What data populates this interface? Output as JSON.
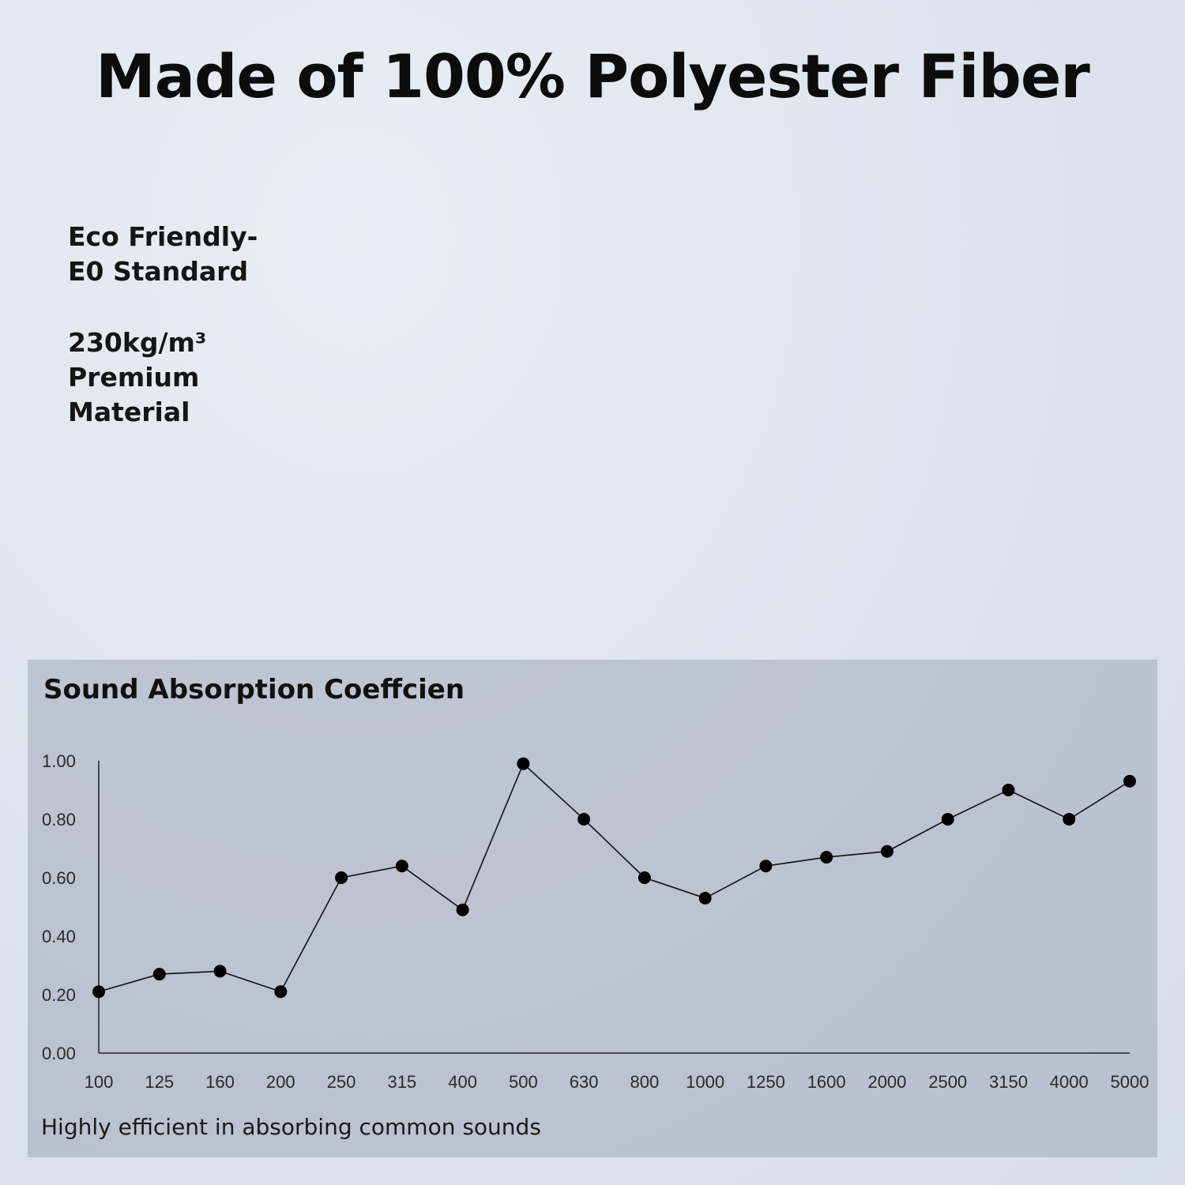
{
  "headline": "Made of 100% Polyester Fiber",
  "features": [
    {
      "lines": [
        "Eco Friendly-",
        "E0 Standard"
      ]
    },
    {
      "lines": [
        "230kg/m³",
        "Premium",
        "Material"
      ]
    }
  ],
  "chart_data": {
    "type": "line",
    "title": "Sound Absorption Coeffcien",
    "caption": "Highly efficient in absorbing common sounds",
    "xlabel": "",
    "ylabel": "",
    "categories": [
      "100",
      "125",
      "160",
      "200",
      "250",
      "315",
      "400",
      "500",
      "630",
      "800",
      "1000",
      "1250",
      "1600",
      "2000",
      "2500",
      "3150",
      "4000",
      "5000"
    ],
    "values": [
      0.21,
      0.27,
      0.28,
      0.21,
      0.6,
      0.64,
      0.49,
      0.99,
      0.8,
      0.6,
      0.53,
      0.64,
      0.67,
      0.69,
      0.8,
      0.9,
      0.8,
      0.93
    ],
    "yticks": [
      "0.00",
      "0.20",
      "0.40",
      "0.60",
      "0.80",
      "1.00"
    ],
    "ylim": [
      0,
      1
    ],
    "grid": false,
    "line_color": "#111111",
    "marker_color": "#000000"
  }
}
